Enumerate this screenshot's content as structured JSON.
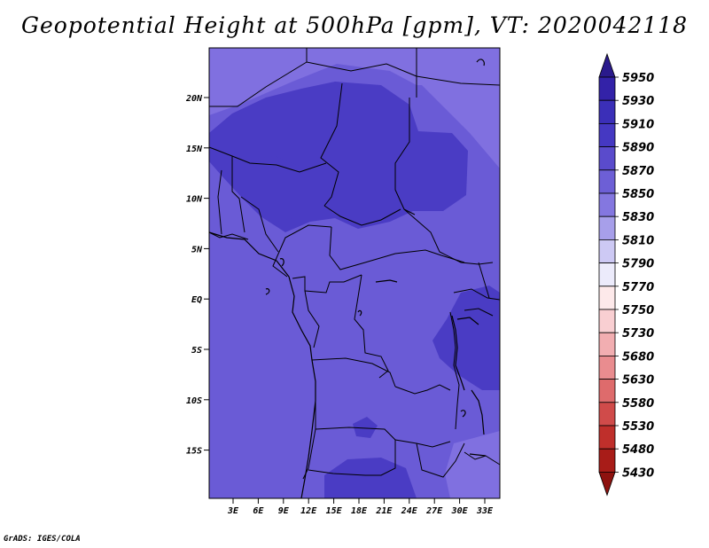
{
  "title": "Geopotential Height at 500hPa [gpm], VT: 2020042118",
  "credit": "GrADS: IGES/COLA",
  "lat_labels": [
    "20N",
    "15N",
    "10N",
    "5N",
    "EQ",
    "5S",
    "10S",
    "15S"
  ],
  "lon_labels": [
    "3E",
    "6E",
    "9E",
    "12E",
    "15E",
    "18E",
    "21E",
    "24E",
    "27E",
    "30E",
    "33E"
  ],
  "colorbar": {
    "labels": [
      "5950",
      "5930",
      "5910",
      "5890",
      "5870",
      "5850",
      "5830",
      "5810",
      "5790",
      "5770",
      "5750",
      "5730",
      "5680",
      "5630",
      "5580",
      "5530",
      "5480",
      "5430"
    ],
    "colors": [
      "#2a1a8c",
      "#3322a8",
      "#3b2fb8",
      "#4538c2",
      "#5a4bcc",
      "#6d5fd6",
      "#8477e0",
      "#a79fea",
      "#cdc9f4",
      "#ecebfb",
      "#fde9ea",
      "#f9cfd2",
      "#f2aeb1",
      "#e98c8f",
      "#de6b6c",
      "#d04b4a",
      "#bf2f2b",
      "#a81c18",
      "#8e120f"
    ]
  },
  "colors": {
    "map_base": "#6a5bd6",
    "map_high": "#4a3cc4",
    "map_low": "#8070e0",
    "border": "#000000"
  }
}
